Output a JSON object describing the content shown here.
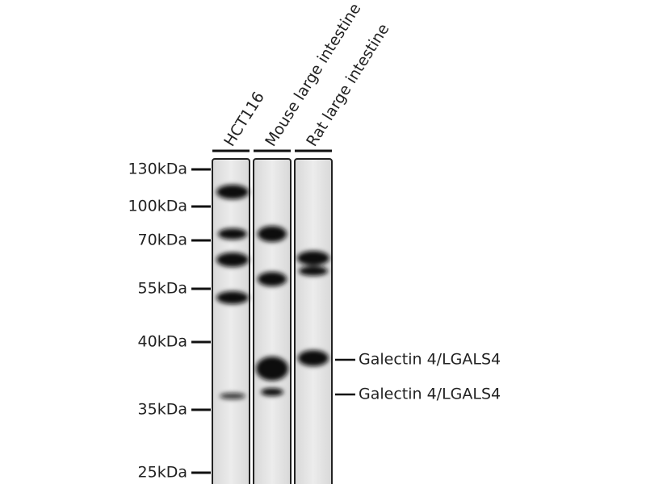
{
  "lanes": [
    "HCT116",
    "Mouse large intestine",
    "Rat large intestine"
  ],
  "markers": [
    "130kDa",
    "100kDa",
    "70kDa",
    "55kDa",
    "40kDa",
    "35kDa",
    "25kDa"
  ],
  "annotations": [
    "Galectin 4/LGALS4",
    "Galectin 4/LGALS4"
  ]
}
